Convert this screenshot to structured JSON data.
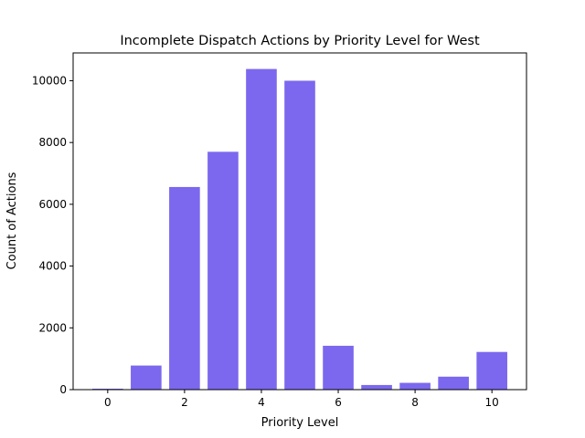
{
  "chart_data": {
    "type": "bar",
    "title": "Incomplete Dispatch Actions by Priority Level for West",
    "xlabel": "Priority Level",
    "ylabel": "Count of Actions",
    "x": [
      0,
      1,
      2,
      3,
      4,
      5,
      6,
      7,
      8,
      9,
      10
    ],
    "values": [
      30,
      780,
      6560,
      7700,
      10380,
      10000,
      1420,
      150,
      220,
      420,
      1220
    ],
    "xlim": [
      -0.9,
      10.9
    ],
    "ylim": [
      0,
      10900
    ],
    "xticks": [
      0,
      2,
      4,
      6,
      8,
      10
    ],
    "yticks": [
      0,
      2000,
      4000,
      6000,
      8000,
      10000
    ],
    "bar_color": "#7b68ee",
    "grid": false,
    "legend": "none"
  }
}
